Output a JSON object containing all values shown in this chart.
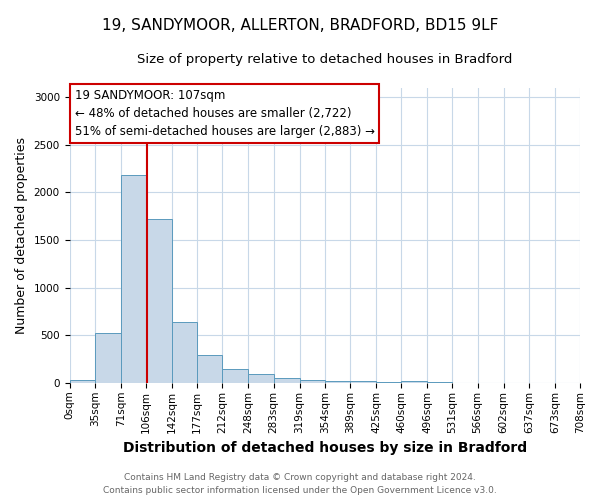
{
  "title1": "19, SANDYMOOR, ALLERTON, BRADFORD, BD15 9LF",
  "title2": "Size of property relative to detached houses in Bradford",
  "xlabel": "Distribution of detached houses by size in Bradford",
  "ylabel": "Number of detached properties",
  "bin_edges": [
    0,
    35,
    71,
    106,
    142,
    177,
    212,
    248,
    283,
    319,
    354,
    389,
    425,
    460,
    496,
    531,
    566,
    602,
    637,
    673,
    708
  ],
  "bin_labels": [
    "0sqm",
    "35sqm",
    "71sqm",
    "106sqm",
    "142sqm",
    "177sqm",
    "212sqm",
    "248sqm",
    "283sqm",
    "319sqm",
    "354sqm",
    "389sqm",
    "425sqm",
    "460sqm",
    "496sqm",
    "531sqm",
    "566sqm",
    "602sqm",
    "637sqm",
    "673sqm",
    "708sqm"
  ],
  "bar_heights": [
    30,
    520,
    2180,
    1720,
    640,
    290,
    145,
    90,
    55,
    35,
    20,
    15,
    10,
    20,
    5,
    3,
    2,
    1,
    1,
    1
  ],
  "bar_color": "#c8d8e8",
  "bar_edge_color": "#5a9abd",
  "vline_x": 107,
  "vline_color": "#cc0000",
  "vline_linewidth": 1.5,
  "ylim": [
    0,
    3100
  ],
  "yticks": [
    0,
    500,
    1000,
    1500,
    2000,
    2500,
    3000
  ],
  "annotation_title": "19 SANDYMOOR: 107sqm",
  "annotation_line1": "← 48% of detached houses are smaller (2,722)",
  "annotation_line2": "51% of semi-detached houses are larger (2,883) →",
  "annotation_box_color": "#ffffff",
  "annotation_box_edge_color": "#cc0000",
  "footer_line1": "Contains HM Land Registry data © Crown copyright and database right 2024.",
  "footer_line2": "Contains public sector information licensed under the Open Government Licence v3.0.",
  "background_color": "#ffffff",
  "grid_color": "#c8d8e8",
  "title1_fontsize": 11,
  "title2_fontsize": 9.5,
  "xlabel_fontsize": 10,
  "ylabel_fontsize": 9,
  "tick_fontsize": 7.5,
  "footer_fontsize": 6.5,
  "ann_fontsize": 8.5
}
